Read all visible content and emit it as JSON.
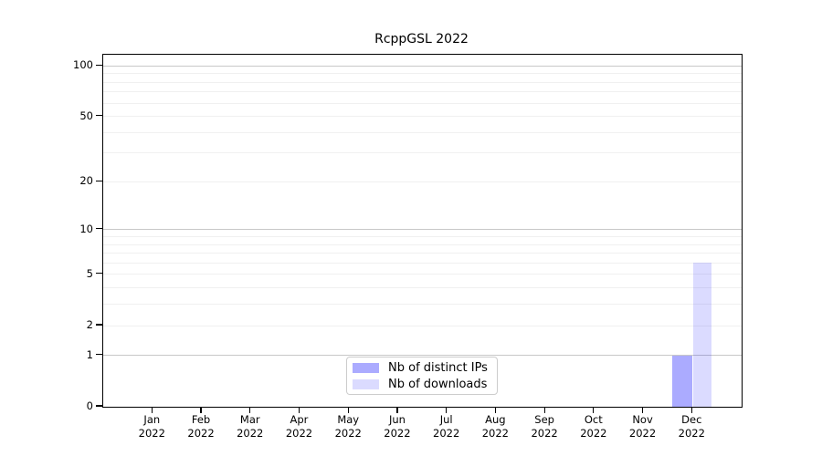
{
  "chart_data": {
    "type": "bar",
    "title": "RcppGSL 2022",
    "categories": [
      {
        "month": "Jan",
        "year": "2022"
      },
      {
        "month": "Feb",
        "year": "2022"
      },
      {
        "month": "Mar",
        "year": "2022"
      },
      {
        "month": "Apr",
        "year": "2022"
      },
      {
        "month": "May",
        "year": "2022"
      },
      {
        "month": "Jun",
        "year": "2022"
      },
      {
        "month": "Jul",
        "year": "2022"
      },
      {
        "month": "Aug",
        "year": "2022"
      },
      {
        "month": "Sep",
        "year": "2022"
      },
      {
        "month": "Oct",
        "year": "2022"
      },
      {
        "month": "Nov",
        "year": "2022"
      },
      {
        "month": "Dec",
        "year": "2022"
      }
    ],
    "series": [
      {
        "name": "Nb of distinct IPs",
        "color": "#0000FF54",
        "values": [
          0,
          0,
          0,
          0,
          0,
          0,
          0,
          0,
          0,
          0,
          0,
          1
        ]
      },
      {
        "name": "Nb of downloads",
        "color": "#0000FF24",
        "values": [
          0,
          0,
          0,
          0,
          0,
          0,
          0,
          0,
          0,
          0,
          0,
          6
        ]
      }
    ],
    "yscale": "log1p",
    "ylim": [
      0,
      110
    ],
    "yticks": [
      100,
      50,
      20,
      10,
      5,
      2,
      1,
      0
    ],
    "ygrid_major": [
      1,
      10,
      100
    ],
    "ygrid_minor": [
      2,
      3,
      4,
      5,
      6,
      7,
      8,
      9,
      20,
      30,
      40,
      50,
      60,
      70,
      80,
      90
    ],
    "grid": "horizontal",
    "legend_position": "bottom-center-inside",
    "colors": {
      "axis": "#000000",
      "grid_major": "#c8c8c8",
      "grid_minor": "#f0f0f0",
      "bar_distinct_ips": "#0000FF54",
      "bar_downloads": "#0000FF24"
    }
  }
}
